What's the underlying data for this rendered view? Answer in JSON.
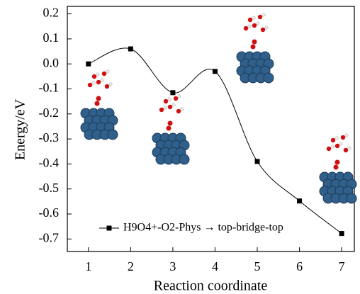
{
  "chart_data": {
    "type": "line",
    "xlabel": "Reaction coordinate",
    "ylabel": "Energy/eV",
    "x": [
      1,
      2,
      3,
      4,
      5,
      6,
      7
    ],
    "series": [
      {
        "name": "H9O4+-O2-Phys → top-bridge-top",
        "color": "#000000",
        "values": [
          0.0,
          0.06,
          -0.115,
          -0.03,
          -0.39,
          -0.548,
          -0.678
        ]
      }
    ],
    "xlim": [
      0.5,
      7.3
    ],
    "ylim": [
      -0.75,
      0.23
    ],
    "xticks": [
      1,
      2,
      3,
      4,
      5,
      6,
      7
    ],
    "yticks": [
      0.2,
      0.1,
      {
        "value": 0,
        "label": "0.0"
      },
      -0.1,
      -0.2,
      -0.3,
      -0.4,
      -0.5,
      -0.6,
      -0.7
    ],
    "legend": "lower-left"
  }
}
